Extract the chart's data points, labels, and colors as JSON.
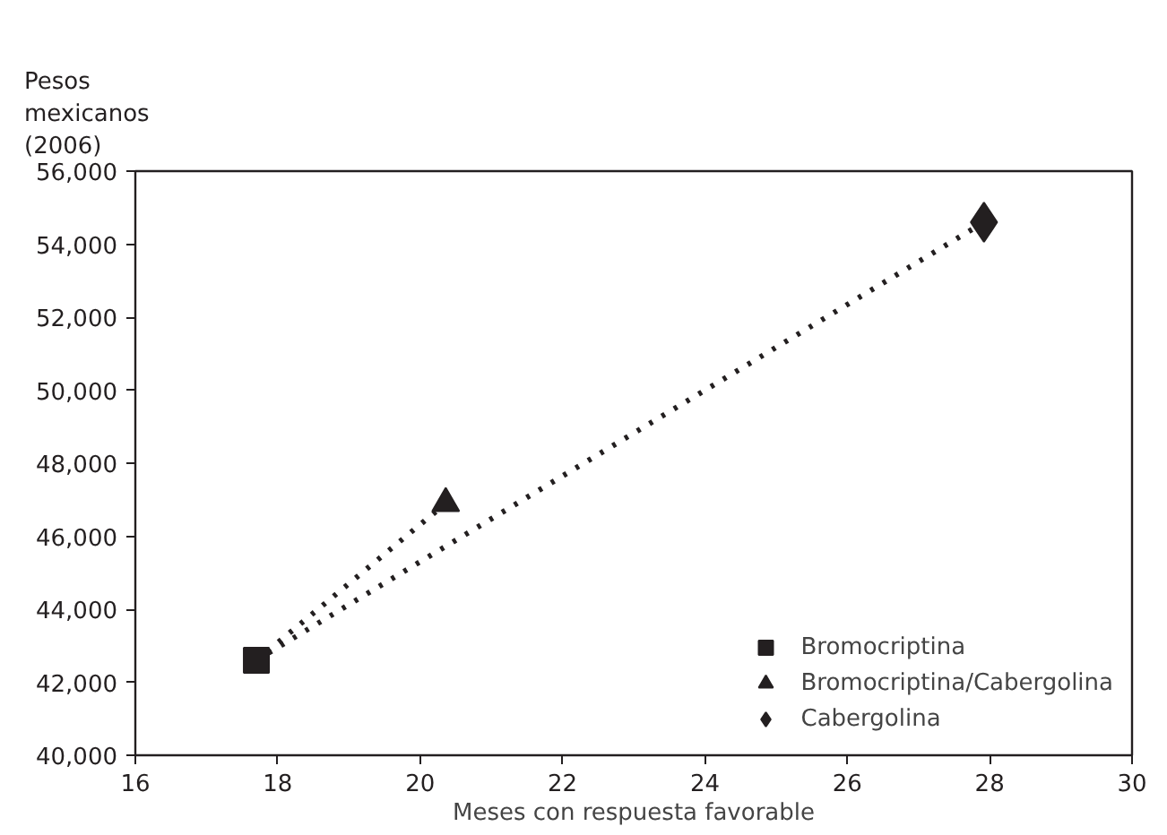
{
  "chart_data": {
    "type": "scatter",
    "xlabel": "Meses con respuesta favorable",
    "ylabel": "Pesos\nmexicanos\n(2006)",
    "xlim": [
      16,
      30
    ],
    "xticks": [
      16,
      18,
      20,
      22,
      24,
      26,
      28,
      30
    ],
    "ylim": [
      40000,
      56000
    ],
    "yticks": [
      {
        "value": 40000,
        "label": "40,000"
      },
      {
        "value": 42000,
        "label": "42,000"
      },
      {
        "value": 44000,
        "label": "44,000"
      },
      {
        "value": 46000,
        "label": "46,000"
      },
      {
        "value": 48000,
        "label": "48,000"
      },
      {
        "value": 50000,
        "label": "50,000"
      },
      {
        "value": 52000,
        "label": "52,000"
      },
      {
        "value": 54000,
        "label": "54,000"
      },
      {
        "value": 56000,
        "label": "56,000"
      }
    ],
    "grid": false,
    "legend": "bottom right",
    "series": [
      {
        "type": "line",
        "line_style": "dotted",
        "marker": "none",
        "color": "#231f20",
        "x": [
          17.7,
          20.36
        ],
        "values": [
          42600,
          46900
        ]
      },
      {
        "type": "line",
        "line_style": "dotted",
        "marker": "none",
        "color": "#231f20",
        "x": [
          17.7,
          27.92
        ],
        "values": [
          42600,
          54600
        ]
      },
      {
        "name": "Bromocriptina",
        "marker": "square",
        "color": "#231f20",
        "x": [
          17.7
        ],
        "values": [
          42600
        ]
      },
      {
        "name": "Bromocriptina/Cabergolina",
        "marker": "triangle",
        "color": "#231f20",
        "x": [
          20.36
        ],
        "values": [
          46900
        ]
      },
      {
        "name": "Cabergolina",
        "marker": "diamond",
        "color": "#231f20",
        "x": [
          27.92
        ],
        "values": [
          54600
        ]
      }
    ]
  }
}
